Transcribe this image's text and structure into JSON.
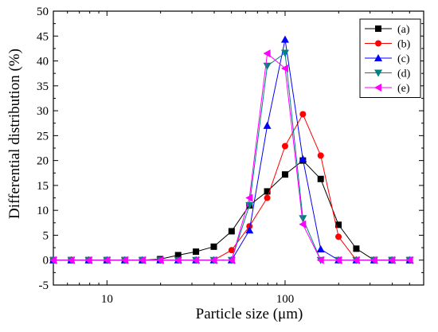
{
  "chart_data": {
    "type": "line",
    "xlabel": "Particle size (μm)",
    "ylabel": "Differential distribution (%)",
    "xscale": "log",
    "xlim": [
      5,
      600
    ],
    "ylim": [
      -5,
      50
    ],
    "yticks": [
      -5,
      0,
      5,
      10,
      15,
      20,
      25,
      30,
      35,
      40,
      45,
      50
    ],
    "xticks": [
      10,
      100
    ],
    "grid": false,
    "legend_position": "top-right",
    "x": [
      5.0,
      6.3,
      7.9,
      10.0,
      12.6,
      15.8,
      19.9,
      25.1,
      31.6,
      39.8,
      50.1,
      63.1,
      79.4,
      100.0,
      125.9,
      158.5,
      199.5,
      251.2,
      316.2,
      398.1,
      501.2
    ],
    "series": [
      {
        "name": "(a)",
        "marker": "square",
        "color": "#000000",
        "values": [
          0,
          0,
          0,
          0,
          0,
          0,
          0.2,
          1.0,
          1.7,
          2.7,
          5.8,
          11.0,
          13.8,
          17.2,
          20.0,
          16.3,
          7.1,
          2.3,
          0,
          0,
          0
        ]
      },
      {
        "name": "(b)",
        "marker": "circle",
        "color": "#ff0000",
        "values": [
          0,
          0,
          0,
          0,
          0,
          0,
          0,
          0,
          0,
          0,
          2.0,
          6.8,
          12.5,
          22.9,
          29.3,
          21.0,
          4.7,
          0,
          0,
          0,
          0
        ]
      },
      {
        "name": "(c)",
        "marker": "triangle-up",
        "color": "#0000ff",
        "values": [
          0,
          0,
          0,
          0,
          0,
          0,
          0,
          0,
          0,
          0,
          0,
          6.0,
          27.0,
          44.3,
          20.3,
          2.2,
          0,
          0,
          0,
          0,
          0
        ]
      },
      {
        "name": "(d)",
        "marker": "triangle-down",
        "color": "#008080",
        "values": [
          0,
          0,
          0,
          0,
          0,
          0,
          0,
          0,
          0,
          0,
          0,
          11.0,
          39.0,
          41.6,
          8.4,
          0,
          0,
          0,
          0,
          0,
          0
        ]
      },
      {
        "name": "(e)",
        "marker": "triangle-left",
        "color": "#ff00ff",
        "values": [
          0,
          0,
          0,
          0,
          0,
          0,
          0,
          0,
          0,
          0,
          0,
          12.5,
          41.5,
          38.5,
          7.2,
          0,
          0,
          0,
          0,
          0,
          0
        ]
      }
    ]
  }
}
